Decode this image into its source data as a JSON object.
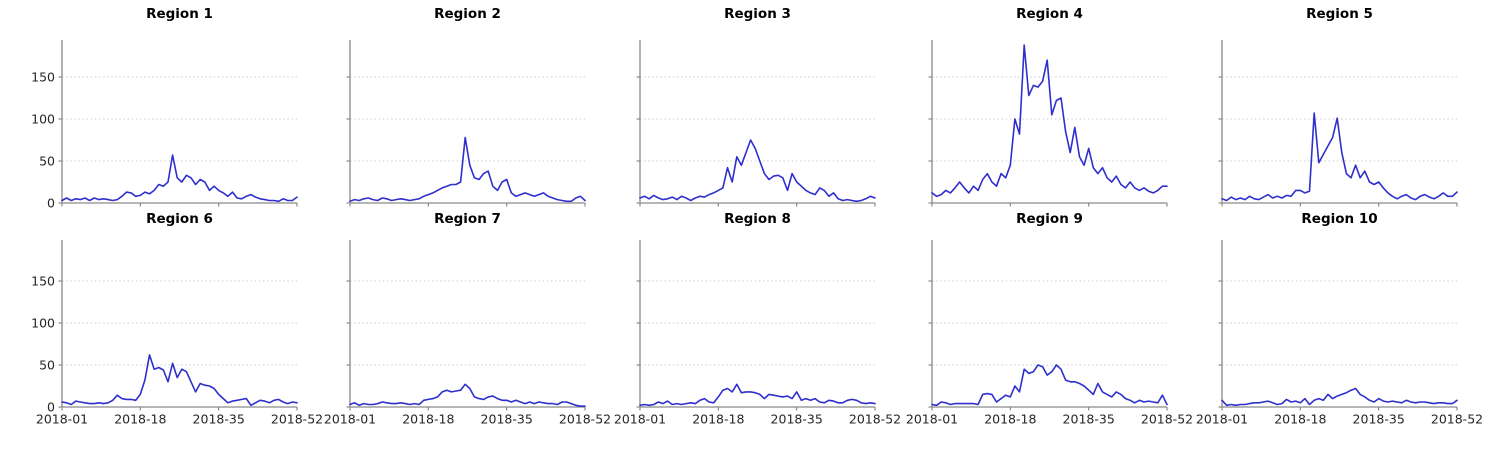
{
  "figure_title": "",
  "chart_data": {
    "type": "line",
    "layout_hint": {
      "rows": 2,
      "cols": 5,
      "legend": "none",
      "grid": "horizontal dotted at y=50,100,150",
      "shared_y": true,
      "shared_x": true,
      "x_tick_labels_only_on_bottom_row": true,
      "y_tick_labels_only_on_first_column": true
    },
    "x": {
      "unit": "ISO week of 2018",
      "start": "2018-01",
      "end": "2018-52",
      "n_points": 52
    },
    "x_ticks": {
      "weeks": [
        1,
        18,
        35,
        52
      ],
      "labels": [
        "2018-01",
        "2018-18",
        "2018-35",
        "2018-52"
      ]
    },
    "y_ticks": [
      0,
      50,
      100,
      150
    ],
    "ylim": [
      0,
      194
    ],
    "colors": {
      "line": "#2f2fce",
      "spine": "#8a8a8a",
      "grid": "#cccccc",
      "tick_label": "#262626",
      "title": "#000000",
      "background": "#ffffff"
    },
    "charts": [
      {
        "title": "Region 1",
        "values": [
          3,
          6,
          3,
          5,
          4,
          6,
          3,
          6,
          4,
          5,
          4,
          3,
          4,
          8,
          13,
          12,
          8,
          9,
          13,
          11,
          15,
          22,
          20,
          25,
          57,
          30,
          25,
          33,
          30,
          22,
          28,
          25,
          15,
          20,
          15,
          12,
          8,
          13,
          6,
          5,
          8,
          10,
          7,
          5,
          4,
          3,
          3,
          2,
          5,
          3,
          3,
          7
        ]
      },
      {
        "title": "Region 2",
        "values": [
          2,
          4,
          3,
          5,
          6,
          4,
          3,
          6,
          5,
          3,
          4,
          5,
          4,
          3,
          4,
          5,
          8,
          10,
          12,
          15,
          18,
          20,
          22,
          22,
          25,
          78,
          45,
          30,
          28,
          35,
          38,
          20,
          15,
          25,
          28,
          12,
          8,
          10,
          12,
          10,
          8,
          10,
          12,
          8,
          6,
          4,
          3,
          2,
          2,
          6,
          8,
          3
        ]
      },
      {
        "title": "Region 3",
        "values": [
          6,
          8,
          5,
          9,
          6,
          4,
          5,
          7,
          4,
          8,
          6,
          3,
          6,
          8,
          7,
          10,
          12,
          15,
          18,
          42,
          25,
          55,
          45,
          60,
          75,
          65,
          50,
          35,
          28,
          32,
          33,
          30,
          15,
          35,
          25,
          20,
          15,
          12,
          10,
          18,
          15,
          8,
          12,
          5,
          3,
          4,
          3,
          2,
          3,
          5,
          8,
          6
        ]
      },
      {
        "title": "Region 4",
        "values": [
          12,
          8,
          10,
          15,
          12,
          18,
          25,
          18,
          12,
          20,
          15,
          28,
          35,
          25,
          20,
          35,
          30,
          45,
          100,
          82,
          188,
          128,
          140,
          138,
          145,
          170,
          105,
          122,
          125,
          85,
          60,
          90,
          55,
          45,
          65,
          42,
          35,
          42,
          30,
          25,
          32,
          22,
          18,
          25,
          18,
          15,
          18,
          14,
          12,
          15,
          20,
          20
        ]
      },
      {
        "title": "Region 5",
        "values": [
          5,
          3,
          7,
          4,
          6,
          4,
          8,
          5,
          4,
          7,
          10,
          6,
          8,
          6,
          9,
          8,
          15,
          15,
          12,
          14,
          107,
          48,
          58,
          68,
          78,
          101,
          60,
          35,
          30,
          45,
          30,
          38,
          25,
          22,
          25,
          18,
          12,
          8,
          5,
          8,
          10,
          6,
          4,
          8,
          10,
          7,
          5,
          8,
          12,
          8,
          8,
          13
        ]
      },
      {
        "title": "Region 6",
        "values": [
          6,
          5,
          3,
          7,
          6,
          5,
          4,
          4,
          5,
          4,
          5,
          8,
          14,
          10,
          9,
          9,
          8,
          15,
          32,
          62,
          45,
          47,
          44,
          30,
          52,
          35,
          45,
          42,
          30,
          18,
          28,
          26,
          25,
          22,
          15,
          10,
          5,
          7,
          8,
          9,
          10,
          2,
          5,
          8,
          7,
          5,
          8,
          9,
          6,
          4,
          6,
          5
        ]
      },
      {
        "title": "Region 7",
        "values": [
          3,
          5,
          2,
          4,
          3,
          3,
          4,
          6,
          5,
          4,
          4,
          5,
          4,
          3,
          4,
          3,
          8,
          9,
          10,
          12,
          18,
          20,
          18,
          19,
          20,
          27,
          22,
          12,
          10,
          9,
          12,
          13,
          10,
          8,
          8,
          6,
          8,
          6,
          4,
          6,
          4,
          6,
          5,
          4,
          4,
          3,
          6,
          6,
          4,
          2,
          1,
          1
        ]
      },
      {
        "title": "Region 8",
        "values": [
          2,
          3,
          2,
          3,
          6,
          4,
          7,
          3,
          4,
          3,
          4,
          5,
          4,
          8,
          10,
          6,
          5,
          12,
          20,
          22,
          18,
          27,
          17,
          18,
          18,
          17,
          15,
          10,
          15,
          14,
          13,
          12,
          13,
          10,
          18,
          8,
          10,
          8,
          10,
          6,
          5,
          8,
          7,
          5,
          5,
          8,
          9,
          8,
          5,
          4,
          5,
          4
        ]
      },
      {
        "title": "Region 9",
        "values": [
          3,
          2,
          6,
          5,
          3,
          4,
          4,
          4,
          4,
          4,
          3,
          15,
          16,
          15,
          6,
          10,
          14,
          12,
          25,
          18,
          45,
          40,
          42,
          50,
          48,
          38,
          42,
          50,
          45,
          32,
          30,
          30,
          28,
          25,
          20,
          15,
          28,
          18,
          15,
          12,
          18,
          15,
          10,
          8,
          5,
          8,
          6,
          7,
          6,
          5,
          14,
          3
        ]
      },
      {
        "title": "Region 10",
        "values": [
          8,
          2,
          3,
          2,
          3,
          3,
          4,
          5,
          5,
          6,
          7,
          5,
          3,
          4,
          9,
          6,
          7,
          5,
          10,
          3,
          8,
          10,
          8,
          15,
          10,
          13,
          15,
          17,
          20,
          22,
          15,
          12,
          8,
          6,
          10,
          7,
          6,
          7,
          6,
          5,
          8,
          6,
          5,
          6,
          6,
          5,
          4,
          5,
          5,
          4,
          4,
          8
        ]
      }
    ]
  }
}
